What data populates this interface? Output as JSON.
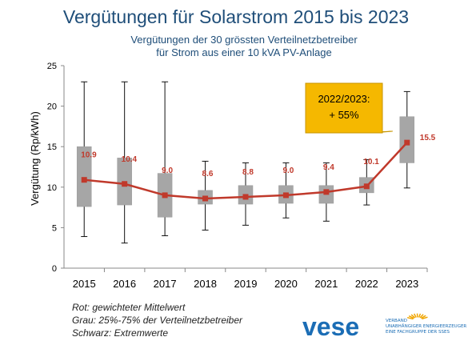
{
  "header": {
    "title": "Vergütungen für Solarstrom 2015 bis 2023",
    "subtitle_line1": "Vergütungen der 30 grössten Verteilnetzbetreiber",
    "subtitle_line2": "für Strom aus einer 10 kVA PV-Anlage"
  },
  "chart_data": {
    "type": "box",
    "ylabel": "Vergütung (Rp/kWh)",
    "ylim": [
      0,
      25
    ],
    "yticks": [
      "0",
      "5",
      "10",
      "15",
      "20",
      "25"
    ],
    "categories": [
      "2015",
      "2016",
      "2017",
      "2018",
      "2019",
      "2020",
      "2021",
      "2022",
      "2023"
    ],
    "whisker_min": [
      3.9,
      3.1,
      4.0,
      4.7,
      5.3,
      6.2,
      5.8,
      7.8,
      9.9
    ],
    "q1": [
      7.6,
      7.8,
      6.3,
      7.9,
      7.9,
      8.0,
      8.0,
      9.3,
      13.0
    ],
    "q3": [
      15.0,
      13.6,
      11.7,
      9.6,
      10.2,
      10.2,
      10.2,
      11.2,
      18.7
    ],
    "whisker_max": [
      23.0,
      23.0,
      23.0,
      13.2,
      13.0,
      13.0,
      13.0,
      13.4,
      21.8
    ],
    "series": [
      {
        "name": "gewichteter Mittelwert",
        "values": [
          10.9,
          10.4,
          9.0,
          8.6,
          8.8,
          9.0,
          9.4,
          10.1,
          15.5
        ],
        "labels": [
          "10.9",
          "10.4",
          "9.0",
          "8.6",
          "8.8",
          "9.0",
          "9.4",
          "10.1",
          "15.5"
        ],
        "color": "#c0392b"
      }
    ],
    "grid": false,
    "callout": {
      "line1": "2022/2023:",
      "line2": "+ 55%",
      "color": "#f5b800"
    }
  },
  "legend_notes": {
    "red": "Rot: gewichteter Mittelwert",
    "grey": "Grau: 25%-75% der Verteilnetzbetreiber",
    "black": "Schwarz: Extremwerte"
  },
  "logo": {
    "word": "vese",
    "line1": "VERBAND",
    "line2": "UNABHÄNGIGER ENERGIEERZEUGER",
    "line3": "EINE FACHGRUPPE DER SSES"
  },
  "colors": {
    "title": "#1f4e79",
    "box_fill": "#a6a6a6",
    "mean_line": "#c0392b",
    "callout": "#f5b800",
    "logo": "#1b6db5"
  }
}
